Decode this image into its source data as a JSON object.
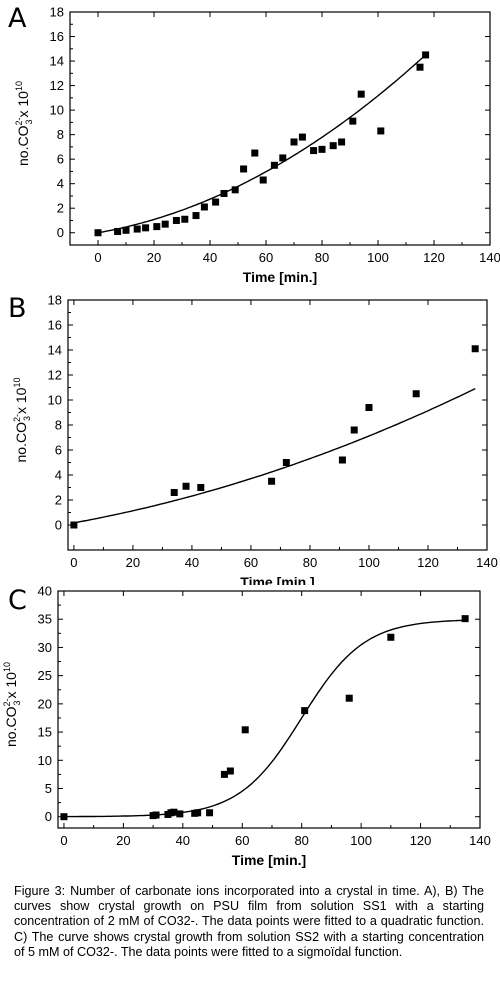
{
  "panels": [
    {
      "label": "A"
    },
    {
      "label": "B"
    },
    {
      "label": "C"
    }
  ],
  "chart_data": [
    {
      "panel": "A",
      "type": "scatter",
      "xlabel": "Time [min.]",
      "ylabel": "no.CO²⁻₃ x 10¹⁰",
      "xlim": [
        -10,
        140
      ],
      "ylim": [
        -1,
        18
      ],
      "xticks": [
        0,
        20,
        40,
        60,
        80,
        100,
        120,
        140
      ],
      "yticks": [
        0,
        2,
        4,
        6,
        8,
        10,
        12,
        14,
        16,
        18
      ],
      "series": [
        {
          "x": [
            0,
            7,
            10,
            14,
            17,
            21,
            24,
            28,
            31,
            35,
            38,
            42,
            45,
            49,
            52,
            56,
            59,
            63,
            66,
            70,
            73,
            77,
            80,
            84,
            87,
            91,
            94,
            101,
            115,
            117
          ],
          "y": [
            0,
            0.1,
            0.2,
            0.3,
            0.4,
            0.5,
            0.7,
            1.0,
            1.1,
            1.4,
            2.1,
            2.5,
            3.2,
            3.5,
            5.2,
            6.5,
            4.3,
            5.5,
            6.1,
            7.4,
            7.8,
            6.7,
            6.8,
            7.1,
            7.4,
            9.1,
            11.3,
            8.3,
            13.5,
            14.5
          ]
        }
      ],
      "fit": {
        "kind": "quadratic",
        "a": 0.00072,
        "b": 0.0397,
        "c": 0,
        "x_range": [
          0,
          117
        ]
      }
    },
    {
      "panel": "B",
      "type": "scatter",
      "xlabel": "Time [min.]",
      "ylabel": "no.CO²⁻₃ x 10¹⁰",
      "xlim": [
        -2,
        140
      ],
      "ylim": [
        -2,
        18
      ],
      "xticks": [
        0,
        20,
        40,
        60,
        80,
        100,
        120,
        140
      ],
      "yticks": [
        0,
        2,
        4,
        6,
        8,
        10,
        12,
        14,
        16,
        18
      ],
      "series": [
        {
          "x": [
            0,
            34,
            38,
            43,
            67,
            72,
            91,
            95,
            100,
            116,
            136
          ],
          "y": [
            0,
            2.6,
            3.1,
            3.0,
            3.5,
            5.0,
            5.2,
            7.6,
            9.4,
            10.5,
            14.1
          ]
        }
      ],
      "fit": {
        "kind": "quadratic",
        "a": 0.000263,
        "b": 0.0432,
        "c": 0.17,
        "x_range": [
          0,
          136
        ]
      }
    },
    {
      "panel": "C",
      "type": "scatter",
      "xlabel": "Time [min.]",
      "ylabel": "no.CO²⁻₃ x 10¹⁰",
      "xlim": [
        -2,
        140
      ],
      "ylim": [
        -2,
        40
      ],
      "xticks": [
        0,
        20,
        40,
        60,
        80,
        100,
        120,
        140
      ],
      "yticks": [
        0,
        5,
        10,
        15,
        20,
        25,
        30,
        35,
        40
      ],
      "series": [
        {
          "x": [
            0,
            30,
            31,
            35,
            36,
            37,
            39,
            44,
            45,
            49,
            54,
            56,
            61,
            81,
            96,
            110,
            135
          ],
          "y": [
            0,
            0.2,
            0.3,
            0.4,
            0.7,
            0.8,
            0.5,
            0.6,
            0.7,
            0.7,
            7.5,
            8.1,
            15.4,
            18.8,
            21.0,
            31.8,
            35.1
          ]
        }
      ],
      "fit": {
        "kind": "sigmoid",
        "top": 35,
        "bottom": 0,
        "x0": 80,
        "k": 10.5,
        "x_range": [
          0,
          135
        ]
      }
    }
  ],
  "caption": "Figure 3: Number of carbonate ions incorporated into a crystal in time. A), B) The curves show crystal growth on PSU film from solution SS1 with a starting concentration of 2 mM of CO32-. The data points were fitted to a quadratic function. C) The curve shows crystal growth from solution SS2 with a starting concentration of 5 mM of CO32-. The data points were fitted to a sigmoïdal function."
}
